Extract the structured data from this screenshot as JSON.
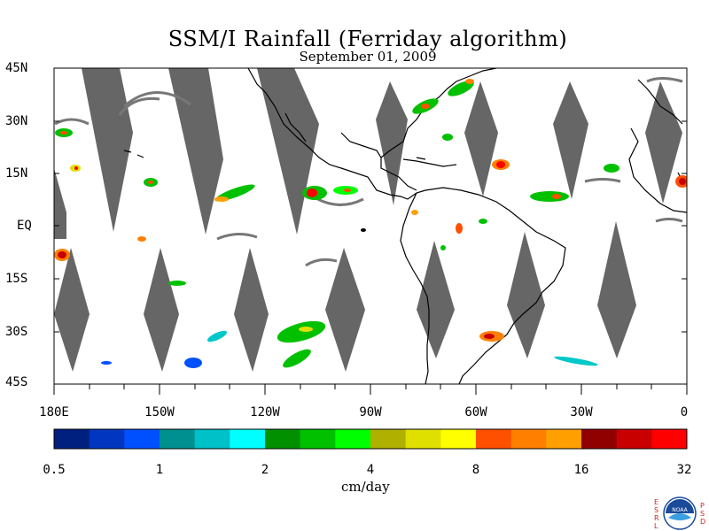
{
  "title": "SSM/I Rainfall (Ferriday algorithm)",
  "subtitle": "September 01, 2009",
  "lat_labels": [
    "45N",
    "30N",
    "15N",
    "EQ",
    "15S",
    "30S",
    "45S"
  ],
  "lon_labels": [
    "180E",
    "150W",
    "120W",
    "90W",
    "60W",
    "30W",
    "0"
  ],
  "colorbar": {
    "units": "cm/day",
    "tick_labels": [
      "0.5",
      "1",
      "2",
      "4",
      "8",
      "16",
      "32"
    ],
    "colors": [
      "#00207f",
      "#0036c0",
      "#0050ff",
      "#009090",
      "#00c0c8",
      "#00ffff",
      "#009000",
      "#00c000",
      "#00ff00",
      "#b0b000",
      "#e0e000",
      "#ffff00",
      "#ff5000",
      "#ff8000",
      "#ffa000",
      "#900000",
      "#c80000",
      "#ff0000"
    ]
  },
  "logo": {
    "left_letters": [
      "E",
      "S",
      "R",
      "L"
    ],
    "right_letters": [
      "P",
      "S",
      "D"
    ],
    "center_text": "NOAA"
  },
  "colors": {
    "swath_gap": "#666666",
    "coast": "#000000"
  }
}
